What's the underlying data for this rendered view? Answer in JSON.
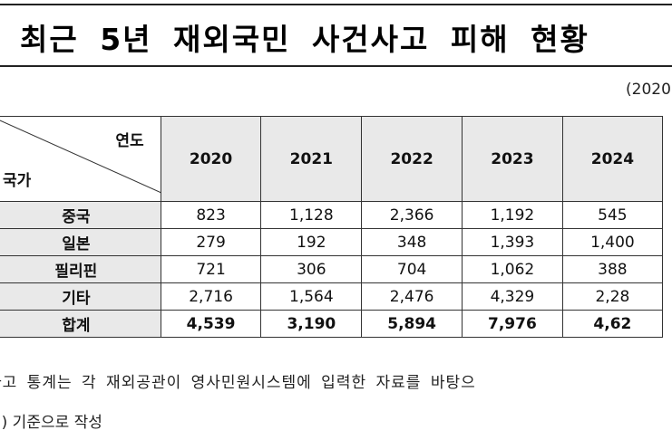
{
  "title": "최근 5년 재외국민 사건사고 피해 현황",
  "unit_note": "(2020",
  "table": {
    "corner_col_label": "연도",
    "corner_row_label": "국가",
    "years": [
      "2020",
      "2021",
      "2022",
      "2023",
      "2024"
    ],
    "rows": [
      {
        "country": "중국",
        "values": [
          "823",
          "1,128",
          "2,366",
          "1,192",
          "545"
        ]
      },
      {
        "country": "일본",
        "values": [
          "279",
          "192",
          "348",
          "1,393",
          "1,400"
        ]
      },
      {
        "country": "필리핀",
        "values": [
          "721",
          "306",
          "704",
          "1,062",
          "388"
        ]
      },
      {
        "country": "기타",
        "values": [
          "2,716",
          "1,564",
          "2,476",
          "4,329",
          "2,28"
        ]
      }
    ],
    "total": {
      "country": "합계",
      "values": [
        "4,539",
        "3,190",
        "5,894",
        "7,976",
        "4,62"
      ]
    }
  },
  "footnotes": [
    "사고 통계는 각 재외공관이 영사민원시스템에 입력한 자료를 바탕으",
    "명) 기준으로 작성"
  ]
}
